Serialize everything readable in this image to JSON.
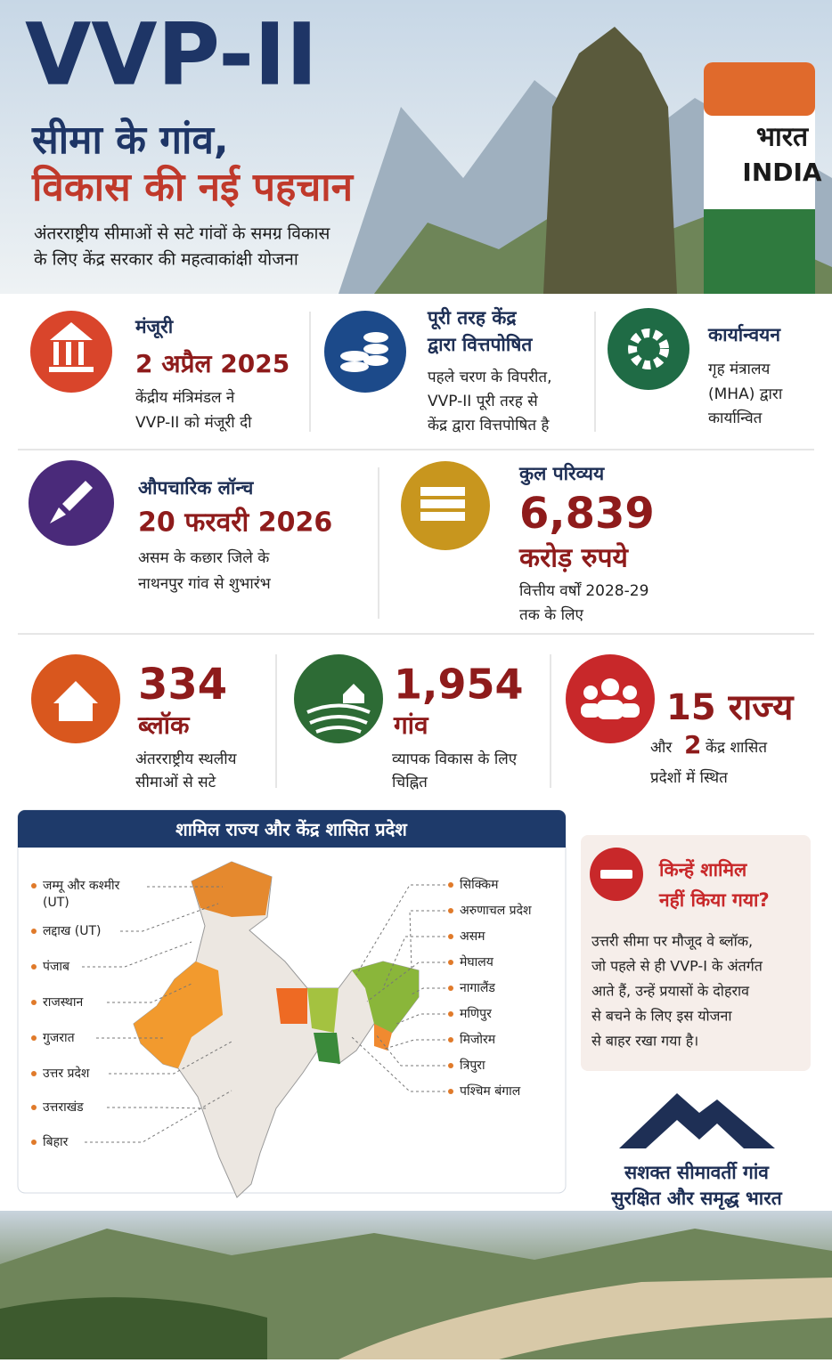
{
  "header": {
    "title": "VVP-II",
    "subtitle": [
      "सीमा के गांव,",
      "विकास की नई पहचान"
    ],
    "description": [
      "अंतरराष्ट्रीय सीमाओं से सटे गांवों के समग्र विकास",
      "के लिए केंद्र सरकार की महत्वाकांक्षी योजना"
    ],
    "pillar": [
      "भारत",
      "INDIA"
    ]
  },
  "highlights": [
    {
      "heading": [
        "मंजूरी"
      ],
      "value": "2 अप्रैल 2025",
      "description": [
        "केंद्रीय मंत्रिमंडल ने",
        "VVP-II को मंजूरी दी"
      ]
    },
    {
      "heading": [
        "पूरी तरह केंद्र",
        "द्वारा वित्तपोषित"
      ],
      "description": [
        "पहले चरण के विपरीत,",
        "VVP-II पूरी तरह से",
        "केंद्र द्वारा वित्तपोषित है"
      ]
    },
    {
      "heading": [
        "कार्यान्वयन"
      ],
      "description": [
        "गृह मंत्रालय",
        "(MHA) द्वारा",
        "कार्यान्वित"
      ]
    },
    {
      "heading": [
        "औपचारिक लॉन्च"
      ],
      "value": "20 फरवरी 2026",
      "description": [
        "असम के कछार जिले के",
        "नाथनपुर गांव से शुभारंभ"
      ]
    },
    {
      "heading": [
        "कुल परिव्यय"
      ],
      "value": "6,839",
      "unit": "करोड़ रुपये",
      "description": [
        "वित्तीय वर्षों 2028-29",
        "तक के लिए"
      ]
    }
  ],
  "stats": [
    {
      "value": "334",
      "unit": "ब्लॉक",
      "description": [
        "अंतरराष्ट्रीय स्थलीय",
        "सीमाओं से सटे"
      ]
    },
    {
      "value": "1,954",
      "unit": "गांव",
      "description": [
        "व्यापक विकास के लिए",
        "चिह्नित"
      ]
    },
    {
      "value": "15 राज्य",
      "joiner": "और",
      "ut_count": "2",
      "ut_text": "केंद्र शासित",
      "description": [
        "प्रदेशों में स्थित"
      ]
    }
  ],
  "map": {
    "title": "शामिल राज्य और केंद्र शासित प्रदेश",
    "left_labels": [
      "जम्मू और कश्मीर",
      "(UT)",
      "लद्दाख (UT)",
      "पंजाब",
      "राजस्थान",
      "गुजरात",
      "उत्तर प्रदेश",
      "उत्तराखंड",
      "बिहार"
    ],
    "right_labels": [
      "सिक्किम",
      "अरुणाचल प्रदेश",
      "असम",
      "मेघालय",
      "नागालैंड",
      "मणिपुर",
      "मिजोरम",
      "त्रिपुरा",
      "पश्चिम बंगाल"
    ]
  },
  "exclusion": {
    "heading": [
      "किन्हें शामिल",
      "नहीं किया गया?"
    ],
    "body": [
      "उत्तरी सीमा पर मौजूद वे ब्लॉक,",
      "जो पहले से ही VVP-I के अंतर्गत",
      "आते हैं, उन्हें प्रयासों के दोहराव",
      "से बचने के लिए इस योजना",
      "से बाहर रखा गया है।"
    ]
  },
  "footer": [
    "सशक्त सीमावर्ती गांव",
    "सुरक्षित और समृद्ध भारत"
  ]
}
